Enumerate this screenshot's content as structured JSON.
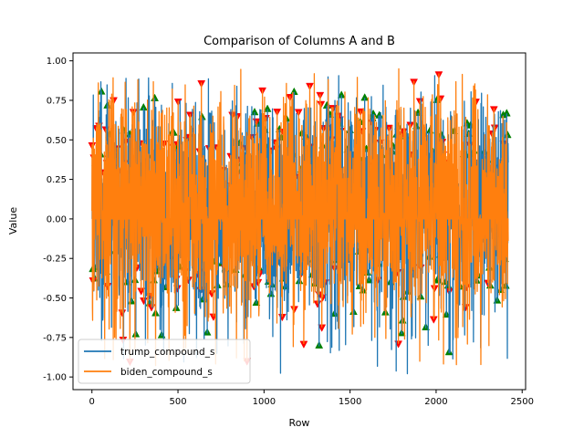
{
  "chart_data": {
    "type": "line",
    "title": "Comparison of Columns A and B",
    "xlabel": "Row",
    "ylabel": "Value",
    "xlim": [
      -110,
      2520
    ],
    "ylim": [
      -1.08,
      1.05
    ],
    "xticks": [
      0,
      500,
      1000,
      1500,
      2000,
      2500
    ],
    "yticks": [
      -1.0,
      -0.75,
      -0.5,
      -0.25,
      0.0,
      0.25,
      0.5,
      0.75,
      1.0
    ],
    "grid": false,
    "legend_position": "lower-left",
    "n_points": 2420,
    "series": [
      {
        "name": "trump_compound_s",
        "color": "#1f77b4",
        "y_range": [
          -0.99,
          0.91
        ],
        "marker": "up-triangle",
        "marker_color": "#008000"
      },
      {
        "name": "biden_compound_s",
        "color": "#ff7f0e",
        "y_range": [
          -0.93,
          0.96
        ],
        "marker": "down-triangle",
        "marker_color": "#ff0000"
      }
    ],
    "annotations": "green up-triangles mark local maxima, red down-triangles mark local minima"
  }
}
